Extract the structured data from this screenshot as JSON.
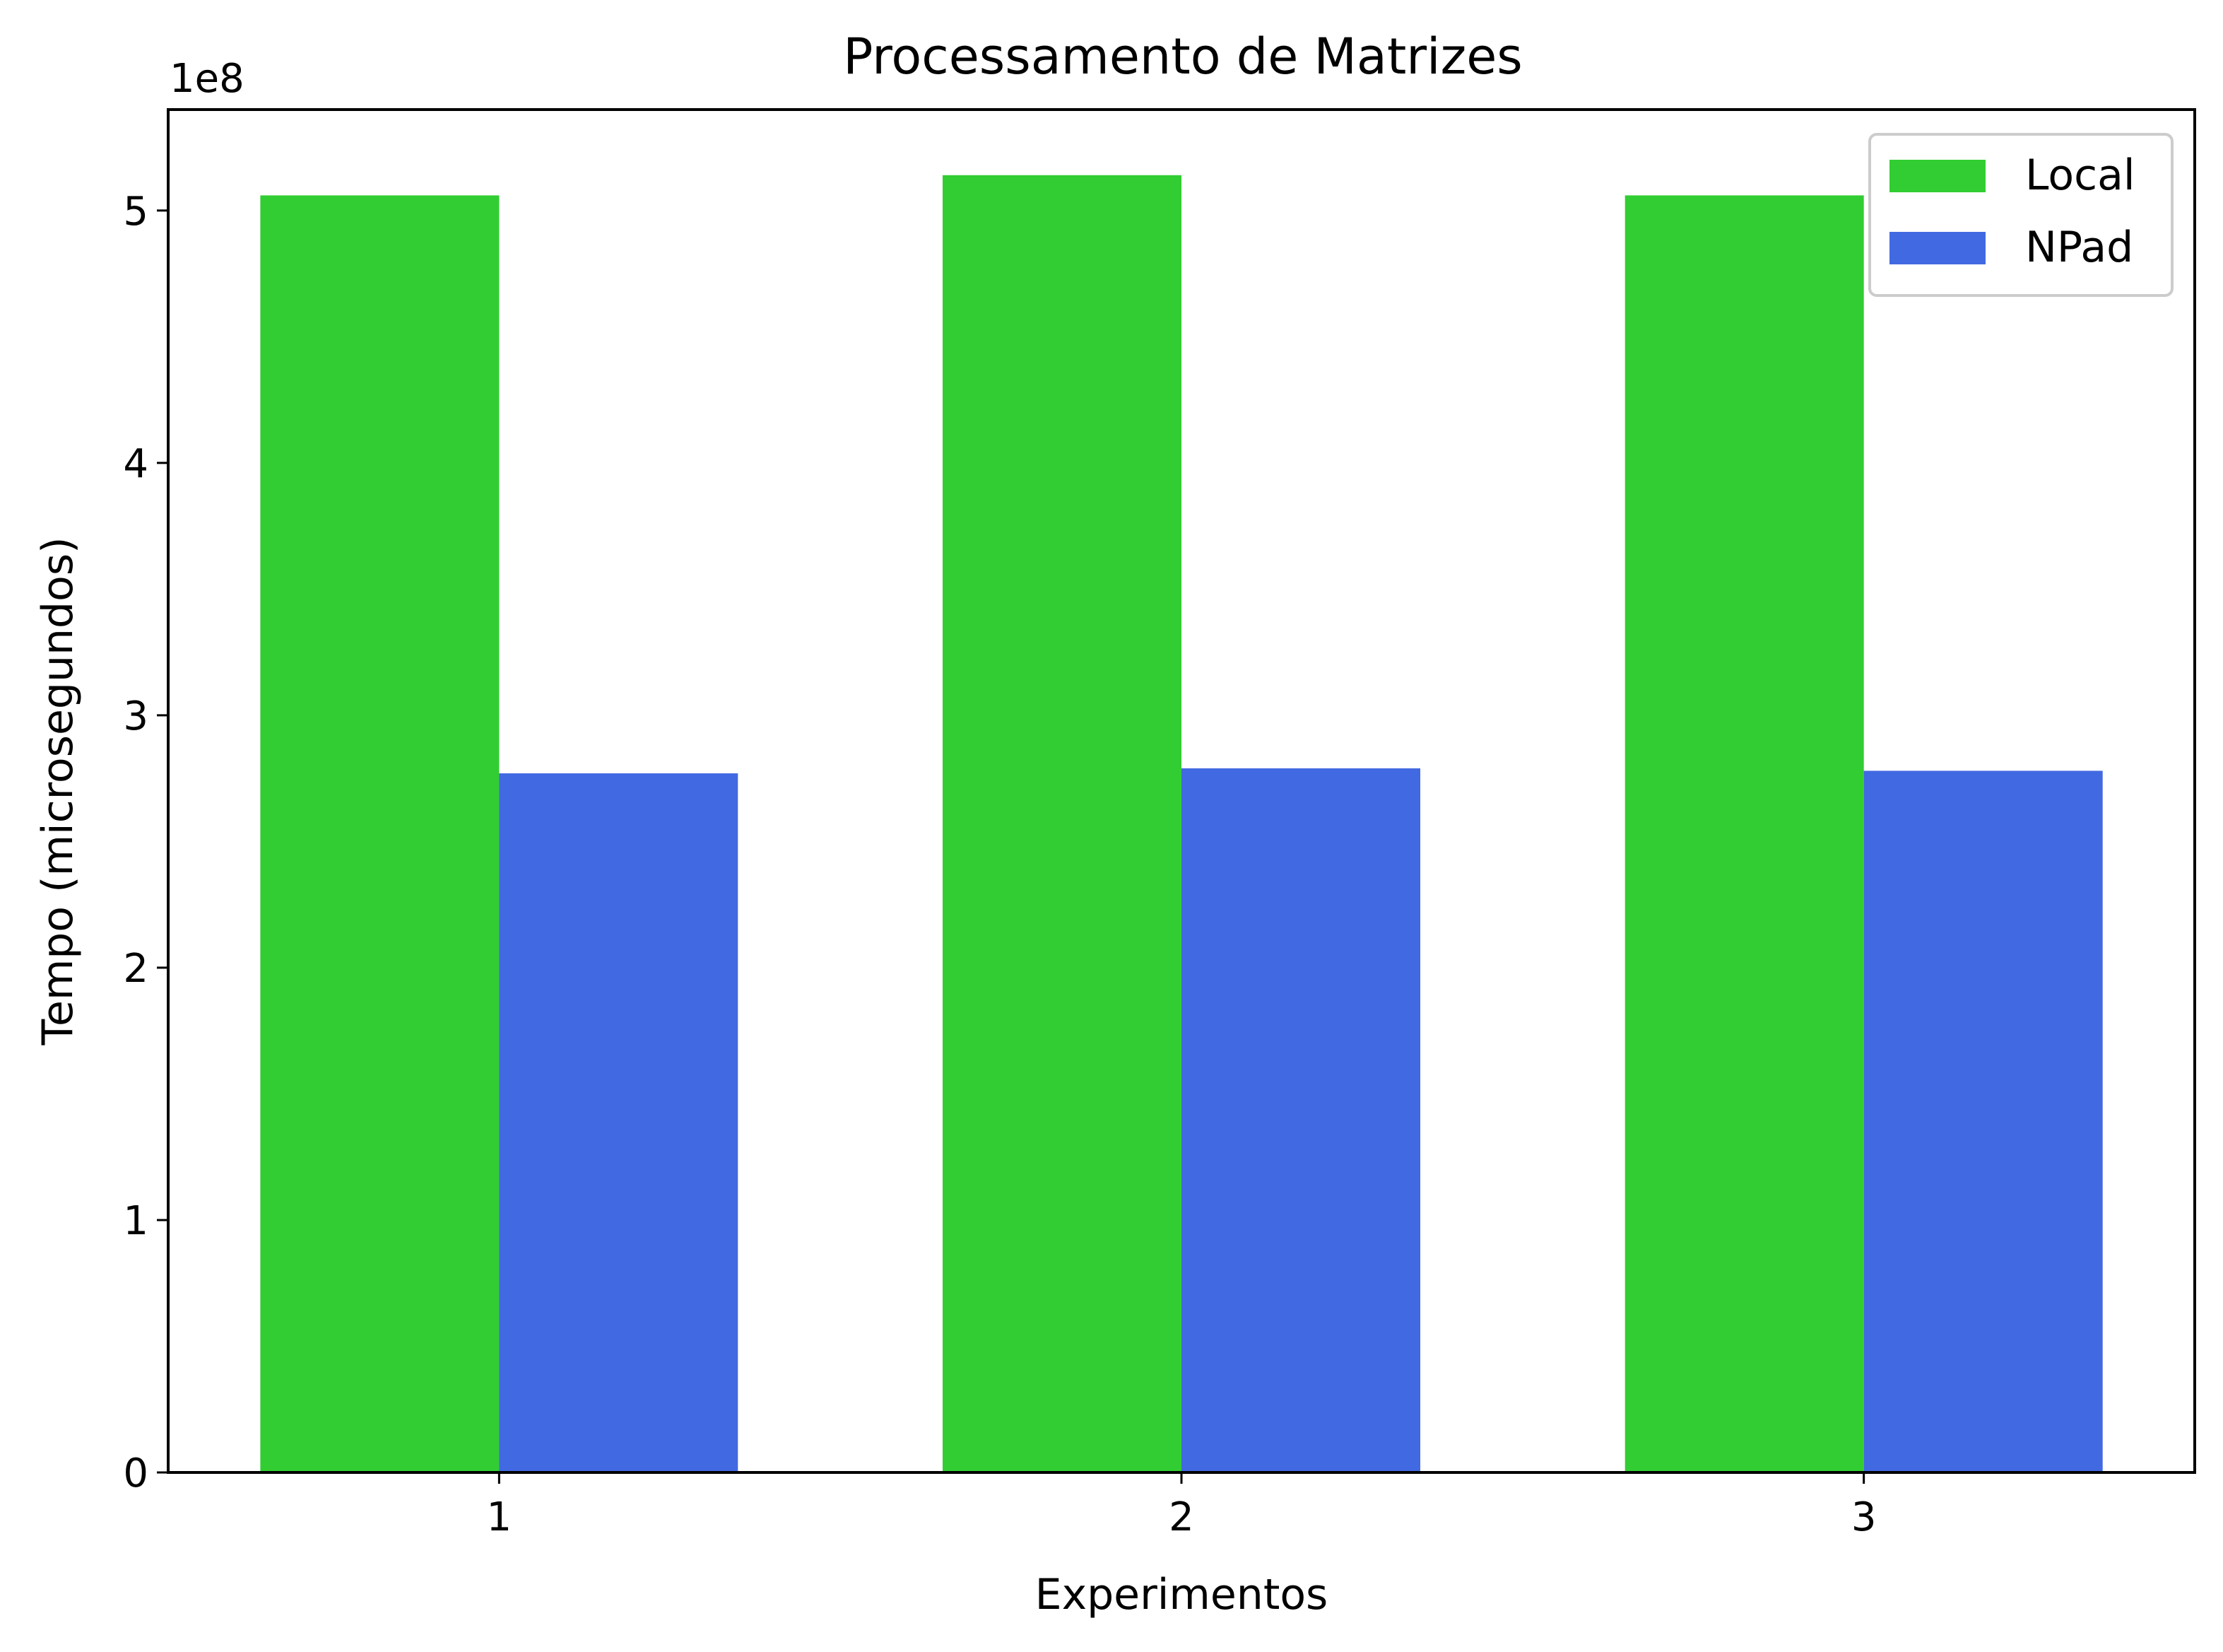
{
  "chart_data": {
    "type": "bar",
    "title": "Processamento de Matrizes",
    "xlabel": "Experimentos",
    "ylabel": "Tempo (microsegundos)",
    "y_offset_label": "1e8",
    "y_scale": 100000000,
    "categories": [
      "1",
      "2",
      "3"
    ],
    "ylim": [
      0,
      540000000
    ],
    "yticks": [
      0,
      100000000,
      200000000,
      300000000,
      400000000,
      500000000
    ],
    "ytick_labels": [
      "0",
      "1",
      "2",
      "3",
      "4",
      "5"
    ],
    "grid": false,
    "legend_position": "top-right",
    "series": [
      {
        "name": "Local",
        "color": "#32cd32",
        "values": [
          506000000,
          514000000,
          506000000
        ]
      },
      {
        "name": "NPad",
        "color": "#4169e1",
        "values": [
          277000000,
          279000000,
          278000000
        ]
      }
    ]
  }
}
